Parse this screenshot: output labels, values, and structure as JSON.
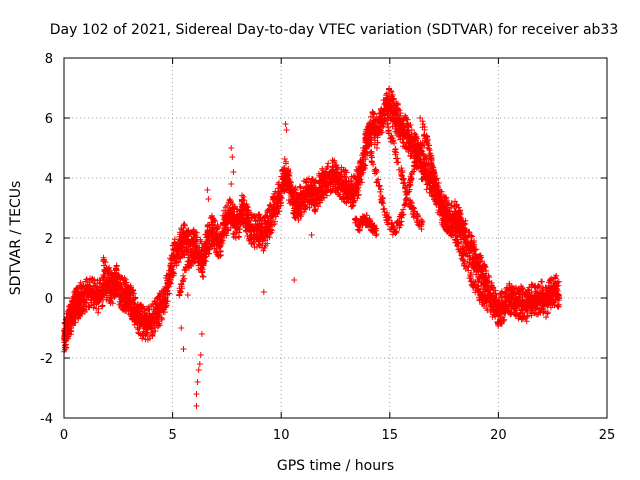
{
  "chart_data": {
    "type": "scatter",
    "title": "Day 102 of 2021, Sidereal Day-to-day VTEC variation (SDTVAR) for receiver ab33",
    "xlabel": "GPS time / hours",
    "ylabel": "SDTVAR / TECUs",
    "xlim": [
      0,
      25
    ],
    "ylim": [
      -4,
      8
    ],
    "x_ticks": [
      0,
      5,
      10,
      15,
      20,
      25
    ],
    "y_ticks": [
      -4,
      -2,
      0,
      2,
      4,
      6,
      8
    ],
    "grid": true,
    "marker": "+",
    "series_color": "#ff0000",
    "series": [
      {
        "name": "SDTVAR",
        "track": [
          [
            0.0,
            -1.4
          ],
          [
            0.1,
            -1.2
          ],
          [
            0.2,
            -0.9
          ],
          [
            0.3,
            -0.7
          ],
          [
            0.4,
            -0.4
          ],
          [
            0.5,
            -0.3
          ],
          [
            0.6,
            -0.2
          ],
          [
            0.7,
            -0.1
          ],
          [
            0.8,
            0.0
          ],
          [
            1.0,
            0.1
          ],
          [
            1.2,
            0.2
          ],
          [
            1.4,
            0.1
          ],
          [
            1.6,
            0.0
          ],
          [
            1.8,
            0.3
          ],
          [
            2.0,
            0.5
          ],
          [
            2.2,
            0.3
          ],
          [
            2.4,
            0.6
          ],
          [
            2.6,
            0.2
          ],
          [
            2.8,
            0.1
          ],
          [
            3.0,
            0.0
          ],
          [
            3.2,
            -0.3
          ],
          [
            3.4,
            -0.6
          ],
          [
            3.6,
            -0.8
          ],
          [
            3.8,
            -0.9
          ],
          [
            4.0,
            -0.8
          ],
          [
            4.2,
            -0.6
          ],
          [
            4.4,
            -0.4
          ],
          [
            4.6,
            -0.1
          ],
          [
            4.8,
            0.5
          ],
          [
            5.0,
            1.2
          ],
          [
            5.2,
            1.6
          ],
          [
            5.4,
            1.8
          ],
          [
            5.6,
            2.0
          ],
          [
            5.8,
            1.7
          ],
          [
            6.0,
            1.8
          ],
          [
            6.2,
            1.5
          ],
          [
            6.4,
            1.2
          ],
          [
            6.6,
            1.9
          ],
          [
            6.8,
            2.2
          ],
          [
            7.0,
            2.0
          ],
          [
            7.2,
            1.8
          ],
          [
            7.4,
            2.5
          ],
          [
            7.6,
            2.8
          ],
          [
            7.8,
            2.6
          ],
          [
            8.0,
            2.4
          ],
          [
            8.2,
            2.9
          ],
          [
            8.4,
            2.7
          ],
          [
            8.6,
            2.3
          ],
          [
            8.8,
            2.2
          ],
          [
            9.0,
            2.3
          ],
          [
            9.2,
            2.1
          ],
          [
            9.4,
            2.4
          ],
          [
            9.6,
            2.8
          ],
          [
            9.8,
            3.2
          ],
          [
            10.0,
            3.6
          ],
          [
            10.2,
            4.2
          ],
          [
            10.4,
            3.6
          ],
          [
            10.6,
            3.1
          ],
          [
            10.8,
            3.2
          ],
          [
            11.0,
            3.3
          ],
          [
            11.2,
            3.6
          ],
          [
            11.4,
            3.5
          ],
          [
            11.6,
            3.4
          ],
          [
            11.8,
            3.7
          ],
          [
            12.0,
            3.9
          ],
          [
            12.2,
            4.0
          ],
          [
            12.4,
            4.1
          ],
          [
            12.6,
            4.0
          ],
          [
            12.8,
            3.8
          ],
          [
            13.0,
            3.7
          ],
          [
            13.2,
            3.5
          ],
          [
            13.4,
            3.6
          ],
          [
            13.6,
            4.0
          ],
          [
            13.8,
            4.7
          ],
          [
            14.0,
            5.4
          ],
          [
            14.2,
            5.7
          ],
          [
            14.4,
            5.5
          ],
          [
            14.6,
            5.9
          ],
          [
            14.8,
            6.2
          ],
          [
            15.0,
            6.5
          ],
          [
            15.2,
            6.1
          ],
          [
            15.4,
            5.9
          ],
          [
            15.6,
            5.6
          ],
          [
            15.8,
            5.5
          ],
          [
            16.0,
            5.2
          ],
          [
            16.2,
            4.9
          ],
          [
            16.4,
            4.5
          ],
          [
            16.6,
            4.2
          ],
          [
            16.8,
            4.1
          ],
          [
            17.0,
            3.8
          ],
          [
            17.2,
            3.4
          ],
          [
            17.4,
            3.0
          ],
          [
            17.6,
            2.8
          ],
          [
            17.8,
            2.6
          ],
          [
            18.0,
            2.7
          ],
          [
            18.2,
            2.5
          ],
          [
            18.4,
            2.2
          ],
          [
            18.6,
            1.8
          ],
          [
            18.8,
            1.5
          ],
          [
            19.0,
            1.2
          ],
          [
            19.2,
            0.9
          ],
          [
            19.4,
            0.5
          ],
          [
            19.6,
            0.1
          ],
          [
            19.8,
            -0.2
          ],
          [
            20.0,
            -0.4
          ],
          [
            20.2,
            -0.3
          ],
          [
            20.4,
            -0.1
          ],
          [
            20.6,
            0.0
          ],
          [
            20.8,
            -0.2
          ],
          [
            21.0,
            -0.1
          ],
          [
            21.2,
            -0.3
          ],
          [
            21.4,
            -0.2
          ],
          [
            21.6,
            0.0
          ],
          [
            21.8,
            -0.1
          ],
          [
            22.0,
            0.1
          ],
          [
            22.2,
            -0.1
          ],
          [
            22.4,
            0.2
          ],
          [
            22.6,
            0.3
          ],
          [
            22.8,
            0.1
          ]
        ],
        "spread": 0.55,
        "spikes": [
          [
            6.1,
            -3.6
          ],
          [
            6.1,
            -3.2
          ],
          [
            6.15,
            -2.8
          ],
          [
            6.2,
            -2.4
          ],
          [
            6.25,
            -2.2
          ],
          [
            6.3,
            -1.9
          ],
          [
            6.35,
            -1.2
          ],
          [
            5.5,
            -1.7
          ],
          [
            5.4,
            -1.0
          ],
          [
            5.7,
            0.1
          ],
          [
            7.7,
            5.0
          ],
          [
            7.75,
            4.7
          ],
          [
            7.8,
            4.2
          ],
          [
            7.7,
            3.8
          ],
          [
            6.6,
            3.6
          ],
          [
            6.65,
            3.3
          ],
          [
            9.2,
            0.2
          ],
          [
            10.6,
            0.6
          ],
          [
            10.8,
            2.6
          ],
          [
            11.4,
            2.1
          ],
          [
            10.2,
            5.8
          ],
          [
            10.25,
            5.6
          ],
          [
            15.1,
            6.7
          ],
          [
            15.3,
            6.5
          ],
          [
            14.3,
            5.9
          ],
          [
            16.4,
            6.0
          ],
          [
            16.6,
            5.7
          ]
        ],
        "bands": [
          [
            [
              13.9,
              5.5
            ],
            [
              14.2,
              4.6
            ],
            [
              14.6,
              3.4
            ],
            [
              14.9,
              2.6
            ],
            [
              15.2,
              2.2
            ],
            [
              15.5,
              2.6
            ],
            [
              15.8,
              3.4
            ],
            [
              16.0,
              4.1
            ],
            [
              16.3,
              4.9
            ],
            [
              16.6,
              5.3
            ]
          ],
          [
            [
              13.4,
              2.5
            ],
            [
              13.6,
              2.4
            ],
            [
              13.8,
              2.6
            ],
            [
              14.0,
              2.6
            ],
            [
              14.2,
              2.3
            ],
            [
              14.4,
              2.2
            ]
          ],
          [
            [
              16.5,
              5.8
            ],
            [
              16.8,
              5.0
            ],
            [
              17.0,
              4.2
            ],
            [
              17.2,
              3.5
            ],
            [
              17.4,
              2.9
            ],
            [
              17.6,
              2.4
            ],
            [
              17.9,
              2.2
            ],
            [
              18.2,
              2.3
            ]
          ],
          [
            [
              14.9,
              5.8
            ],
            [
              15.2,
              5.0
            ],
            [
              15.6,
              4.0
            ],
            [
              15.9,
              3.2
            ],
            [
              16.2,
              2.7
            ],
            [
              16.5,
              2.4
            ]
          ],
          [
            [
              1.8,
              1.2
            ],
            [
              2.1,
              0.8
            ],
            [
              2.4,
              0.4
            ],
            [
              2.7,
              0.0
            ],
            [
              3.0,
              -0.4
            ],
            [
              3.3,
              -0.7
            ],
            [
              3.6,
              -0.8
            ]
          ],
          [
            [
              5.3,
              0.2
            ],
            [
              5.6,
              0.9
            ],
            [
              5.9,
              1.3
            ],
            [
              6.2,
              1.5
            ],
            [
              6.5,
              1.6
            ]
          ],
          [
            [
              18.0,
              2.0
            ],
            [
              18.3,
              1.5
            ],
            [
              18.6,
              0.9
            ],
            [
              18.9,
              0.4
            ],
            [
              19.2,
              0.0
            ],
            [
              19.5,
              -0.3
            ]
          ]
        ]
      }
    ]
  }
}
